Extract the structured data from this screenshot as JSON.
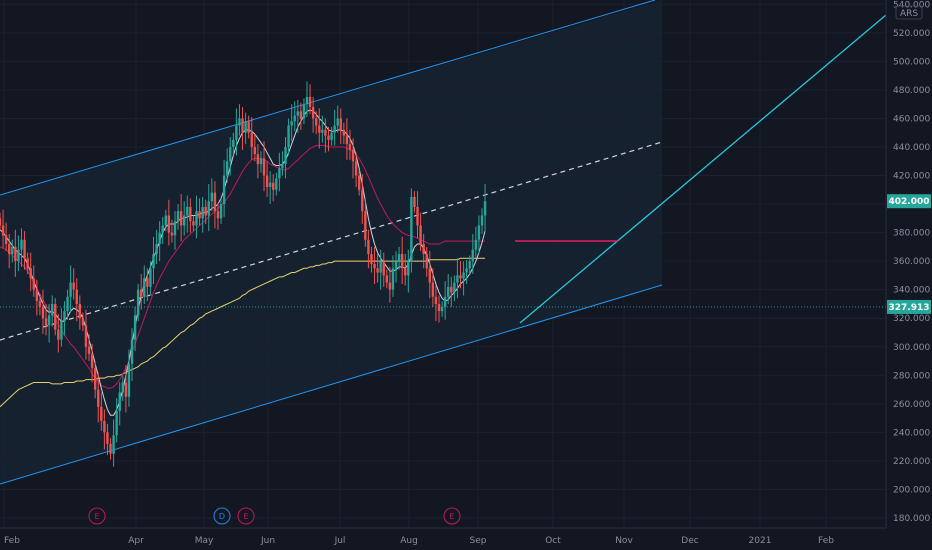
{
  "chart_data": {
    "type": "candlestick",
    "currency": "ARS",
    "y_axis": {
      "min": 173,
      "max": 543,
      "ticks": [
        "540.000",
        "520.000",
        "500.000",
        "480.000",
        "460.000",
        "440.000",
        "420.000",
        "400.000",
        "380.000",
        "360.000",
        "340.000",
        "320.000",
        "300.000",
        "280.000",
        "260.000",
        "240.000",
        "220.000",
        "200.000",
        "180.000"
      ],
      "tick_values": [
        540,
        520,
        500,
        480,
        460,
        440,
        420,
        400,
        380,
        360,
        340,
        320,
        300,
        280,
        260,
        240,
        220,
        200,
        180
      ]
    },
    "x_axis": {
      "labels": [
        "Feb",
        "Apr",
        "May",
        "Jun",
        "Jul",
        "Aug",
        "Sep",
        "Oct",
        "Nov",
        "Dec",
        "2021",
        "Feb"
      ],
      "label_days": [
        4,
        136,
        204,
        268,
        340,
        409,
        478,
        553,
        624,
        690,
        760,
        826
      ]
    },
    "last_price": "402.000",
    "last_price_value": 402,
    "horizontal_line": "327.913",
    "horizontal_line_value": 327.913,
    "events": [
      {
        "label": "E",
        "day": 97,
        "color": "#c2185b"
      },
      {
        "label": "D",
        "day": 222,
        "color": "#1e88e5"
      },
      {
        "label": "E",
        "day": 246,
        "color": "#c2185b"
      },
      {
        "label": "E",
        "day": 452,
        "color": "#c2185b"
      }
    ],
    "ohlc_start_day": 0,
    "candle_spacing_days": 3.07,
    "closes": [
      385,
      378,
      372,
      365,
      370,
      360,
      368,
      375,
      362,
      355,
      348,
      340,
      332,
      328,
      320,
      315,
      322,
      330,
      312,
      305,
      318,
      325,
      335,
      345,
      340,
      330,
      320,
      315,
      300,
      295,
      285,
      270,
      258,
      248,
      240,
      232,
      225,
      238,
      255,
      268,
      275,
      265,
      288,
      305,
      322,
      340,
      335,
      348,
      342,
      355,
      365,
      372,
      380,
      385,
      392,
      380,
      378,
      388,
      395,
      385,
      392,
      398,
      388,
      385,
      395,
      390,
      398,
      392,
      402,
      408,
      395,
      390,
      400,
      420,
      430,
      440,
      445,
      455,
      460,
      450,
      458,
      450,
      440,
      435,
      428,
      432,
      420,
      412,
      415,
      410,
      418,
      425,
      428,
      440,
      455,
      458,
      462,
      465,
      460,
      470,
      475,
      468,
      460,
      455,
      450,
      452,
      448,
      445,
      450,
      455,
      460,
      452,
      448,
      442,
      438,
      430,
      420,
      410,
      395,
      375,
      365,
      358,
      355,
      352,
      360,
      350,
      345,
      340,
      355,
      360,
      365,
      355,
      350,
      360,
      405,
      398,
      385,
      372,
      365,
      355,
      345,
      335,
      330,
      325,
      328,
      335,
      342,
      338,
      345,
      350,
      348,
      352,
      355,
      360,
      368,
      375,
      385,
      392,
      402
    ],
    "opens": [
      390,
      385,
      378,
      372,
      365,
      370,
      360,
      368,
      375,
      362,
      355,
      348,
      340,
      332,
      328,
      320,
      315,
      322,
      330,
      312,
      305,
      318,
      325,
      335,
      345,
      340,
      330,
      320,
      315,
      300,
      295,
      285,
      270,
      258,
      248,
      240,
      232,
      225,
      238,
      255,
      268,
      275,
      265,
      288,
      305,
      322,
      340,
      335,
      348,
      342,
      355,
      365,
      372,
      380,
      385,
      392,
      380,
      378,
      388,
      395,
      385,
      392,
      398,
      388,
      385,
      395,
      390,
      398,
      392,
      402,
      408,
      395,
      390,
      400,
      420,
      430,
      440,
      445,
      455,
      460,
      450,
      458,
      450,
      440,
      435,
      428,
      432,
      420,
      412,
      415,
      410,
      418,
      425,
      428,
      440,
      455,
      458,
      462,
      465,
      460,
      470,
      475,
      468,
      460,
      455,
      450,
      452,
      448,
      445,
      450,
      455,
      460,
      452,
      448,
      442,
      438,
      430,
      420,
      410,
      395,
      375,
      365,
      358,
      355,
      352,
      360,
      350,
      345,
      340,
      355,
      360,
      365,
      355,
      350,
      360,
      405,
      398,
      385,
      372,
      365,
      355,
      345,
      335,
      330,
      325,
      328,
      335,
      342,
      338,
      345,
      350,
      348,
      352,
      355,
      360,
      368,
      375,
      385,
      392
    ],
    "ma_fast": [
      382,
      380,
      377,
      374,
      371,
      368,
      366,
      364,
      362,
      358,
      352,
      346,
      340,
      335,
      330,
      326,
      324,
      325,
      323,
      320,
      318,
      318,
      321,
      325,
      327,
      326,
      324,
      320,
      313,
      305,
      297,
      288,
      280,
      271,
      263,
      256,
      252,
      252,
      256,
      262,
      270,
      280,
      290,
      302,
      314,
      326,
      336,
      344,
      350,
      356,
      362,
      368,
      374,
      380,
      384,
      386,
      386,
      386,
      388,
      390,
      390,
      391,
      392,
      392,
      392,
      393,
      394,
      394,
      395,
      397,
      398,
      400,
      404,
      410,
      418,
      426,
      434,
      441,
      446,
      450,
      452,
      452,
      451,
      449,
      446,
      443,
      440,
      436,
      432,
      428,
      427,
      427,
      428,
      431,
      436,
      442,
      448,
      454,
      458,
      462,
      465,
      466,
      465,
      463,
      460,
      458,
      455,
      452,
      451,
      451,
      452,
      452,
      451,
      449,
      446,
      441,
      434,
      425,
      414,
      402,
      390,
      380,
      372,
      366,
      362,
      359,
      356,
      353,
      353,
      354,
      356,
      356,
      355,
      358,
      364,
      370,
      372,
      372,
      369,
      364,
      358,
      351,
      344,
      338,
      334,
      332,
      333,
      336,
      338,
      341,
      344,
      346,
      348,
      351,
      355,
      360,
      366,
      373,
      381
    ],
    "ma_mid": [
      370,
      369,
      368,
      366,
      364,
      362,
      360,
      358,
      356,
      353,
      349,
      345,
      341,
      337,
      333,
      329,
      326,
      323,
      320,
      316,
      312,
      308,
      305,
      302,
      300,
      297,
      294,
      291,
      288,
      285,
      281,
      278,
      275,
      273,
      272,
      271,
      271,
      272,
      274,
      277,
      281,
      285,
      290,
      296,
      302,
      308,
      314,
      320,
      326,
      332,
      338,
      343,
      348,
      352,
      356,
      360,
      363,
      366,
      369,
      372,
      375,
      377,
      379,
      381,
      383,
      385,
      387,
      389,
      391,
      393,
      395,
      397,
      399,
      401,
      404,
      407,
      411,
      415,
      419,
      423,
      426,
      429,
      431,
      432,
      432,
      432,
      431,
      430,
      428,
      427,
      426,
      425,
      424,
      424,
      425,
      427,
      429,
      431,
      433,
      435,
      437,
      439,
      440,
      441,
      441,
      441,
      441,
      440,
      440,
      440,
      440,
      440,
      440,
      439,
      438,
      437,
      435,
      432,
      428,
      424,
      419,
      414,
      409,
      404,
      400,
      396,
      392,
      389,
      386,
      384,
      382,
      380,
      379,
      378,
      378,
      377,
      376,
      375,
      374,
      373,
      372,
      372,
      372,
      372,
      373,
      374,
      374,
      374,
      374,
      374,
      374,
      374,
      374,
      374,
      374,
      374,
      374,
      374,
      374
    ],
    "ma_slow": [
      258,
      260,
      262,
      264,
      266,
      268,
      270,
      271,
      272,
      273,
      274,
      275,
      275,
      275,
      275,
      275,
      275,
      274,
      274,
      274,
      274,
      275,
      275,
      275,
      275,
      276,
      276,
      276,
      277,
      277,
      277,
      277,
      278,
      278,
      278,
      279,
      279,
      279,
      280,
      280,
      281,
      282,
      283,
      284,
      285,
      286,
      288,
      289,
      290,
      292,
      293,
      295,
      297,
      299,
      300,
      302,
      304,
      306,
      308,
      310,
      311,
      313,
      315,
      316,
      318,
      320,
      321,
      323,
      324,
      325,
      326,
      327,
      328,
      329,
      330,
      331,
      332,
      333,
      334,
      336,
      337,
      339,
      340,
      341,
      342,
      343,
      344,
      345,
      346,
      347,
      348,
      349,
      349,
      350,
      351,
      352,
      352,
      353,
      354,
      355,
      355,
      356,
      356,
      357,
      357,
      358,
      358,
      359,
      359,
      360,
      360,
      360,
      360,
      360,
      360,
      360,
      360,
      360,
      360,
      360,
      360,
      360,
      360,
      360,
      360,
      360,
      360,
      360,
      360,
      360,
      360,
      360,
      360,
      360,
      360,
      360,
      360,
      360,
      360,
      360,
      361,
      361,
      361,
      361,
      361,
      361,
      361,
      361,
      361,
      361,
      362,
      362,
      362,
      362,
      362,
      362,
      362,
      362,
      362
    ]
  }
}
